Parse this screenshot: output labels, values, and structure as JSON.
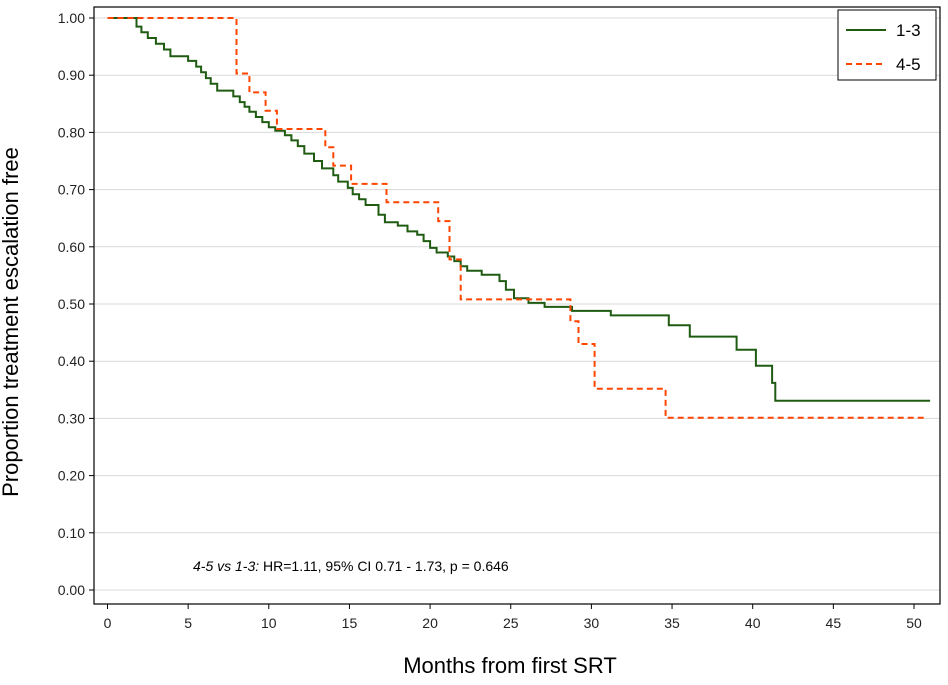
{
  "chart_data": {
    "type": "line",
    "xlabel": "Months from first SRT",
    "ylabel": "Proportion treatment escalation free",
    "xlim": [
      0,
      52
    ],
    "ylim": [
      0,
      1.0
    ],
    "x_ticks": [
      0,
      5,
      10,
      15,
      20,
      25,
      30,
      35,
      40,
      45,
      50
    ],
    "y_ticks": [
      0,
      0.1,
      0.2,
      0.3,
      0.4,
      0.5,
      0.6,
      0.7,
      0.8,
      0.9,
      1.0
    ],
    "x_tick_labels": [
      "0",
      "5",
      "10",
      "15",
      "20",
      "25",
      "30",
      "35",
      "40",
      "45",
      "50"
    ],
    "y_tick_labels": [
      "0.00",
      "0.10",
      "0.20",
      "0.30",
      "0.40",
      "0.50",
      "0.60",
      "0.70",
      "0.80",
      "0.90",
      "1.00"
    ],
    "grid": "horizontal",
    "legend_position": "top-right",
    "series": [
      {
        "name": "1-3",
        "style": "solid",
        "color": "#1f5c12",
        "points": [
          [
            0,
            1.0
          ],
          [
            1.8,
            1.0
          ],
          [
            1.8,
            0.985
          ],
          [
            2.1,
            0.985
          ],
          [
            2.1,
            0.975
          ],
          [
            2.5,
            0.975
          ],
          [
            2.5,
            0.965
          ],
          [
            3.0,
            0.965
          ],
          [
            3.0,
            0.955
          ],
          [
            3.5,
            0.955
          ],
          [
            3.5,
            0.945
          ],
          [
            3.9,
            0.945
          ],
          [
            3.9,
            0.933
          ],
          [
            5.0,
            0.933
          ],
          [
            5.0,
            0.925
          ],
          [
            5.5,
            0.925
          ],
          [
            5.5,
            0.915
          ],
          [
            5.8,
            0.915
          ],
          [
            5.8,
            0.905
          ],
          [
            6.1,
            0.905
          ],
          [
            6.1,
            0.895
          ],
          [
            6.4,
            0.895
          ],
          [
            6.4,
            0.885
          ],
          [
            6.8,
            0.885
          ],
          [
            6.8,
            0.873
          ],
          [
            7.8,
            0.873
          ],
          [
            7.8,
            0.863
          ],
          [
            8.2,
            0.863
          ],
          [
            8.2,
            0.853
          ],
          [
            8.5,
            0.853
          ],
          [
            8.5,
            0.845
          ],
          [
            8.8,
            0.845
          ],
          [
            8.8,
            0.836
          ],
          [
            9.2,
            0.836
          ],
          [
            9.2,
            0.827
          ],
          [
            9.6,
            0.827
          ],
          [
            9.6,
            0.818
          ],
          [
            10.0,
            0.818
          ],
          [
            10.0,
            0.809
          ],
          [
            10.4,
            0.809
          ],
          [
            10.4,
            0.803
          ],
          [
            11.0,
            0.803
          ],
          [
            11.0,
            0.795
          ],
          [
            11.4,
            0.795
          ],
          [
            11.4,
            0.786
          ],
          [
            11.8,
            0.786
          ],
          [
            11.8,
            0.776
          ],
          [
            12.2,
            0.776
          ],
          [
            12.2,
            0.763
          ],
          [
            12.8,
            0.763
          ],
          [
            12.8,
            0.75
          ],
          [
            13.3,
            0.75
          ],
          [
            13.3,
            0.737
          ],
          [
            14.0,
            0.737
          ],
          [
            14.0,
            0.725
          ],
          [
            14.3,
            0.725
          ],
          [
            14.3,
            0.714
          ],
          [
            14.9,
            0.714
          ],
          [
            14.9,
            0.703
          ],
          [
            15.2,
            0.703
          ],
          [
            15.2,
            0.692
          ],
          [
            15.6,
            0.692
          ],
          [
            15.6,
            0.683
          ],
          [
            16.0,
            0.683
          ],
          [
            16.0,
            0.673
          ],
          [
            16.8,
            0.673
          ],
          [
            16.8,
            0.656
          ],
          [
            17.2,
            0.656
          ],
          [
            17.2,
            0.643
          ],
          [
            18.0,
            0.643
          ],
          [
            18.0,
            0.637
          ],
          [
            18.6,
            0.637
          ],
          [
            18.6,
            0.627
          ],
          [
            19.2,
            0.627
          ],
          [
            19.2,
            0.621
          ],
          [
            19.6,
            0.621
          ],
          [
            19.6,
            0.61
          ],
          [
            20.0,
            0.61
          ],
          [
            20.0,
            0.598
          ],
          [
            20.4,
            0.598
          ],
          [
            20.4,
            0.59
          ],
          [
            21.1,
            0.59
          ],
          [
            21.1,
            0.583
          ],
          [
            21.5,
            0.583
          ],
          [
            21.5,
            0.575
          ],
          [
            21.9,
            0.575
          ],
          [
            21.9,
            0.566
          ],
          [
            22.3,
            0.566
          ],
          [
            22.3,
            0.558
          ],
          [
            23.2,
            0.558
          ],
          [
            23.2,
            0.551
          ],
          [
            24.3,
            0.551
          ],
          [
            24.3,
            0.54
          ],
          [
            24.7,
            0.54
          ],
          [
            24.7,
            0.525
          ],
          [
            25.2,
            0.525
          ],
          [
            25.2,
            0.51
          ],
          [
            26.1,
            0.51
          ],
          [
            26.1,
            0.502
          ],
          [
            27.1,
            0.502
          ],
          [
            27.1,
            0.495
          ],
          [
            28.8,
            0.495
          ],
          [
            28.8,
            0.488
          ],
          [
            31.2,
            0.488
          ],
          [
            31.2,
            0.48
          ],
          [
            34.8,
            0.48
          ],
          [
            34.8,
            0.463
          ],
          [
            36.1,
            0.463
          ],
          [
            36.1,
            0.443
          ],
          [
            39.0,
            0.443
          ],
          [
            39.0,
            0.42
          ],
          [
            40.2,
            0.42
          ],
          [
            40.2,
            0.392
          ],
          [
            41.2,
            0.392
          ],
          [
            41.2,
            0.362
          ],
          [
            41.4,
            0.362
          ],
          [
            41.4,
            0.331
          ],
          [
            51.0,
            0.331
          ]
        ]
      },
      {
        "name": "4-5",
        "style": "dashed",
        "color": "#ff4500",
        "points": [
          [
            0,
            1.0
          ],
          [
            8.0,
            1.0
          ],
          [
            8.0,
            0.903
          ],
          [
            8.8,
            0.903
          ],
          [
            8.8,
            0.87
          ],
          [
            9.8,
            0.87
          ],
          [
            9.8,
            0.838
          ],
          [
            10.5,
            0.838
          ],
          [
            10.5,
            0.806
          ],
          [
            13.5,
            0.806
          ],
          [
            13.5,
            0.774
          ],
          [
            14.0,
            0.774
          ],
          [
            14.0,
            0.742
          ],
          [
            15.1,
            0.742
          ],
          [
            15.1,
            0.71
          ],
          [
            17.3,
            0.71
          ],
          [
            17.3,
            0.678
          ],
          [
            20.5,
            0.678
          ],
          [
            20.5,
            0.645
          ],
          [
            21.2,
            0.645
          ],
          [
            21.2,
            0.578
          ],
          [
            21.9,
            0.578
          ],
          [
            21.9,
            0.508
          ],
          [
            28.7,
            0.508
          ],
          [
            28.7,
            0.47
          ],
          [
            29.2,
            0.47
          ],
          [
            29.2,
            0.43
          ],
          [
            30.2,
            0.43
          ],
          [
            30.2,
            0.352
          ],
          [
            34.6,
            0.352
          ],
          [
            34.6,
            0.301
          ],
          [
            50.6,
            0.301
          ]
        ]
      }
    ],
    "annotation": {
      "italic": "4-5 vs 1-3:",
      "text": " HR=1.11, 95% CI 0.71 - 1.73, p = 0.646"
    }
  }
}
